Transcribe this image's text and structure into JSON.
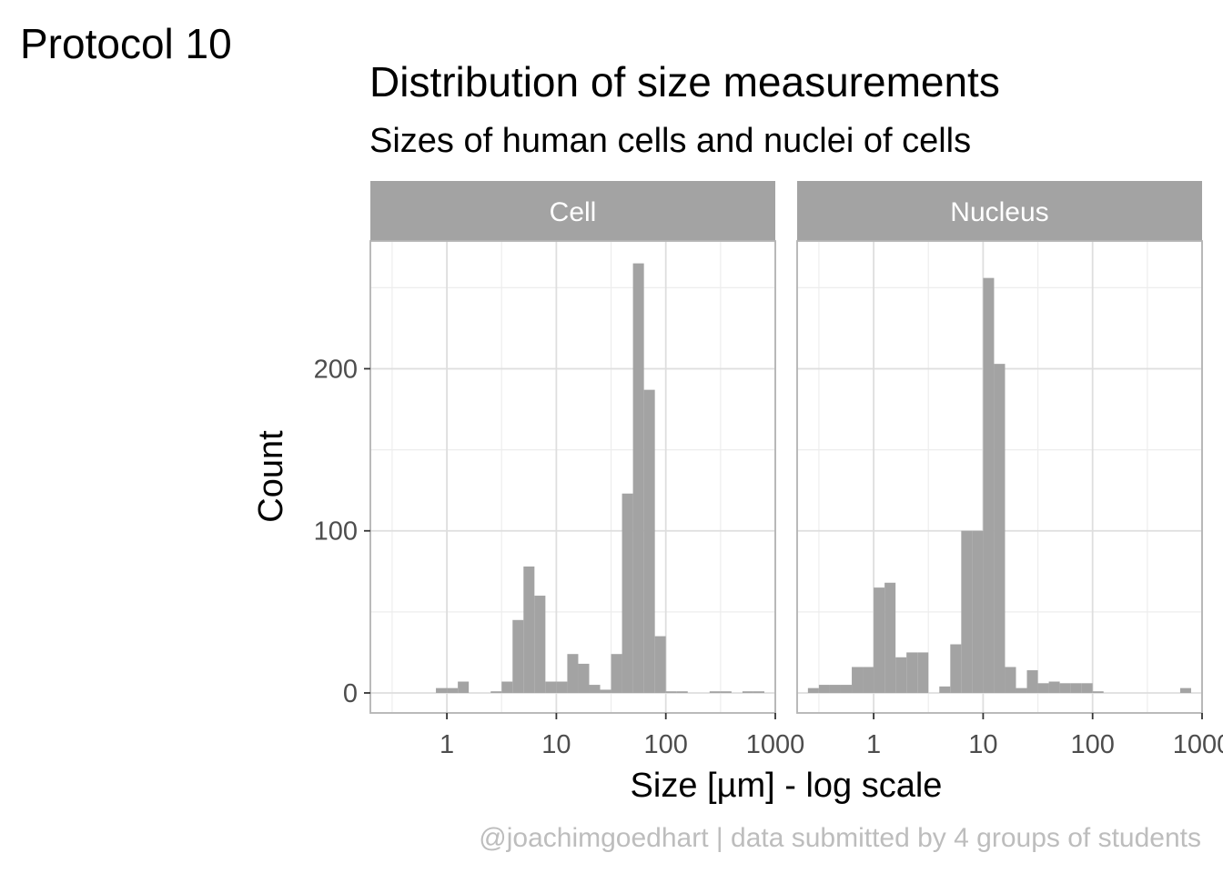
{
  "tag": "Protocol 10",
  "caption": "@joachimgoedhart | data submitted by 4 groups of students",
  "colors": {
    "bar": "#a3a3a3",
    "strip": "#a3a3a3",
    "grid_major": "#dedede",
    "grid_minor": "#ededed",
    "panel_border": "#b3b3b3"
  },
  "chart_data": {
    "type": "bar",
    "title": "Distribution of size measurements",
    "subtitle": "Sizes of human cells and nuclei of cells",
    "xlabel": "Size [µm] - log scale",
    "ylabel": "Count",
    "x_scale": "log10",
    "xlim": [
      0.2,
      1000
    ],
    "ylim": [
      0,
      290
    ],
    "x_ticks": [
      1,
      10,
      100,
      1000
    ],
    "x_tick_labels": [
      "1",
      "10",
      "100",
      "1000"
    ],
    "y_ticks": [
      0,
      100,
      200
    ],
    "y_tick_labels": [
      "0",
      "100",
      "200"
    ],
    "grid": true,
    "legend": "none",
    "bin_log_width": 0.1,
    "facets": [
      {
        "name": "Cell",
        "bins": [
          {
            "x0": 0.794,
            "x1": 1.0,
            "count": 3
          },
          {
            "x0": 1.0,
            "x1": 1.259,
            "count": 3
          },
          {
            "x0": 1.259,
            "x1": 1.585,
            "count": 7
          },
          {
            "x0": 2.512,
            "x1": 3.162,
            "count": 1
          },
          {
            "x0": 3.162,
            "x1": 3.981,
            "count": 7
          },
          {
            "x0": 3.981,
            "x1": 5.012,
            "count": 45
          },
          {
            "x0": 5.012,
            "x1": 6.31,
            "count": 78
          },
          {
            "x0": 6.31,
            "x1": 7.943,
            "count": 60
          },
          {
            "x0": 7.943,
            "x1": 10.0,
            "count": 7
          },
          {
            "x0": 10.0,
            "x1": 12.589,
            "count": 7
          },
          {
            "x0": 12.589,
            "x1": 15.849,
            "count": 24
          },
          {
            "x0": 15.849,
            "x1": 19.953,
            "count": 18
          },
          {
            "x0": 19.953,
            "x1": 25.119,
            "count": 5
          },
          {
            "x0": 25.119,
            "x1": 31.623,
            "count": 2
          },
          {
            "x0": 31.623,
            "x1": 39.811,
            "count": 24
          },
          {
            "x0": 39.811,
            "x1": 50.119,
            "count": 123
          },
          {
            "x0": 50.119,
            "x1": 63.096,
            "count": 265
          },
          {
            "x0": 63.096,
            "x1": 79.433,
            "count": 187
          },
          {
            "x0": 79.433,
            "x1": 100.0,
            "count": 35
          },
          {
            "x0": 100.0,
            "x1": 125.893,
            "count": 1
          },
          {
            "x0": 125.893,
            "x1": 158.489,
            "count": 1
          },
          {
            "x0": 251.189,
            "x1": 316.228,
            "count": 1
          },
          {
            "x0": 316.228,
            "x1": 398.107,
            "count": 1
          },
          {
            "x0": 501.187,
            "x1": 630.957,
            "count": 1
          },
          {
            "x0": 630.957,
            "x1": 794.328,
            "count": 1
          }
        ]
      },
      {
        "name": "Nucleus",
        "bins": [
          {
            "x0": 0.251,
            "x1": 0.316,
            "count": 3
          },
          {
            "x0": 0.316,
            "x1": 0.398,
            "count": 5
          },
          {
            "x0": 0.398,
            "x1": 0.501,
            "count": 5
          },
          {
            "x0": 0.501,
            "x1": 0.631,
            "count": 5
          },
          {
            "x0": 0.631,
            "x1": 0.794,
            "count": 16
          },
          {
            "x0": 0.794,
            "x1": 1.0,
            "count": 16
          },
          {
            "x0": 1.0,
            "x1": 1.259,
            "count": 65
          },
          {
            "x0": 1.259,
            "x1": 1.585,
            "count": 68
          },
          {
            "x0": 1.585,
            "x1": 1.995,
            "count": 22
          },
          {
            "x0": 1.995,
            "x1": 2.512,
            "count": 25
          },
          {
            "x0": 2.512,
            "x1": 3.162,
            "count": 25
          },
          {
            "x0": 3.981,
            "x1": 5.012,
            "count": 4
          },
          {
            "x0": 5.012,
            "x1": 6.31,
            "count": 30
          },
          {
            "x0": 6.31,
            "x1": 7.943,
            "count": 100
          },
          {
            "x0": 7.943,
            "x1": 10.0,
            "count": 100
          },
          {
            "x0": 10.0,
            "x1": 12.589,
            "count": 256
          },
          {
            "x0": 12.589,
            "x1": 15.849,
            "count": 203
          },
          {
            "x0": 15.849,
            "x1": 19.953,
            "count": 16
          },
          {
            "x0": 19.953,
            "x1": 25.119,
            "count": 3
          },
          {
            "x0": 25.119,
            "x1": 31.623,
            "count": 14
          },
          {
            "x0": 31.623,
            "x1": 39.811,
            "count": 6
          },
          {
            "x0": 39.811,
            "x1": 50.119,
            "count": 7
          },
          {
            "x0": 50.119,
            "x1": 63.096,
            "count": 6
          },
          {
            "x0": 63.096,
            "x1": 79.433,
            "count": 6
          },
          {
            "x0": 79.433,
            "x1": 100.0,
            "count": 6
          },
          {
            "x0": 100.0,
            "x1": 125.893,
            "count": 1
          },
          {
            "x0": 630.957,
            "x1": 794.328,
            "count": 3
          }
        ]
      }
    ]
  }
}
